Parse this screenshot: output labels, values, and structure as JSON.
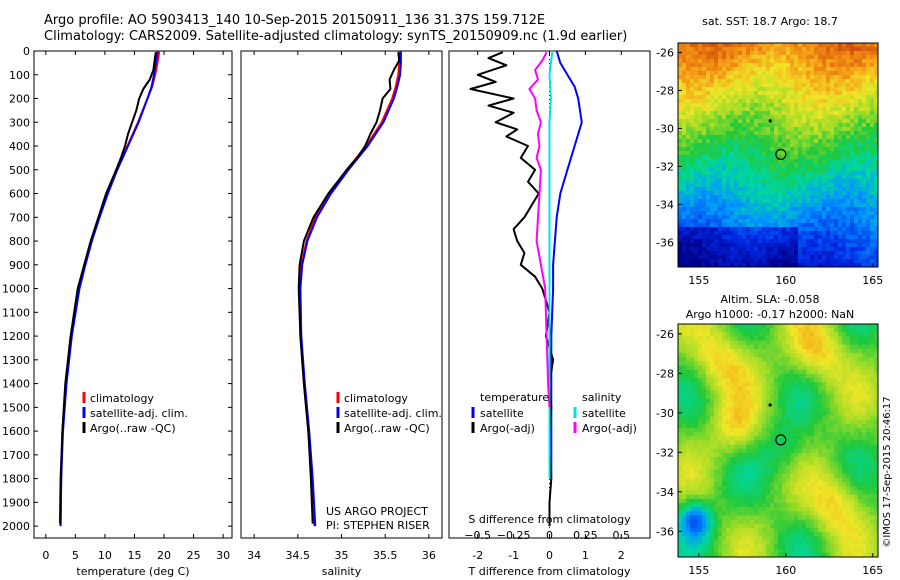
{
  "header": {
    "line1": "Argo profile: AO 5903413_140 10-Sep-2015 20150911_136 31.37S 159.712E",
    "line2": "Climatology: CARS2009. Satellite-adjusted climatology: synTS_20150909.nc (1.9d earlier)"
  },
  "colors": {
    "climatology": "#ff0000",
    "satellite": "#0000ff",
    "argo": "#000000",
    "t_satellite": "#0000ff",
    "s_satellite": "#00e5e5",
    "s_argo": "#ff00ff"
  },
  "chart_data": [
    {
      "type": "line",
      "name": "temperature",
      "xlabel": "temperature (deg C)",
      "xlim": [
        -2,
        31.5
      ],
      "ylim": [
        2050,
        0
      ],
      "xticks": [
        0,
        5,
        10,
        15,
        20,
        25,
        30
      ],
      "yticks": [
        0,
        100,
        200,
        300,
        400,
        500,
        600,
        700,
        800,
        900,
        1000,
        1100,
        1200,
        1300,
        1400,
        1500,
        1600,
        1700,
        1800,
        1900,
        2000
      ],
      "legend": [
        "climatology",
        "satellite-adj. clim.",
        "Argo(..raw -QC)"
      ],
      "series": [
        {
          "name": "climatology",
          "depth": [
            0,
            50,
            100,
            150,
            200,
            300,
            400,
            500,
            600,
            700,
            800,
            900,
            1000,
            1200,
            1400,
            1600,
            1800,
            2000
          ],
          "values": [
            19.2,
            18.9,
            18.5,
            18.0,
            17.2,
            15.6,
            13.8,
            12.0,
            10.4,
            9.0,
            7.7,
            6.6,
            5.6,
            4.3,
            3.4,
            2.8,
            2.6,
            2.5
          ]
        },
        {
          "name": "satellite-adj. clim.",
          "depth": [
            0,
            50,
            100,
            150,
            200,
            300,
            400,
            500,
            600,
            700,
            800,
            900,
            1000,
            1200,
            1400,
            1600,
            1800,
            2000
          ],
          "values": [
            18.9,
            18.6,
            18.3,
            17.9,
            17.2,
            15.7,
            13.9,
            12.1,
            10.5,
            9.1,
            7.8,
            6.7,
            5.7,
            4.4,
            3.5,
            2.9,
            2.6,
            2.5
          ]
        },
        {
          "name": "Argo(..raw -QC)",
          "depth": [
            5,
            40,
            80,
            120,
            160,
            200,
            250,
            300,
            350,
            400,
            450,
            500,
            600,
            700,
            800,
            900,
            1000,
            1200,
            1400,
            1600,
            1800,
            1990
          ],
          "values": [
            18.6,
            18.4,
            18.2,
            17.6,
            16.5,
            15.8,
            15.3,
            14.6,
            13.9,
            13.4,
            12.7,
            11.9,
            10.2,
            8.9,
            7.6,
            6.5,
            5.4,
            4.2,
            3.3,
            2.8,
            2.5,
            2.4
          ]
        }
      ]
    },
    {
      "type": "line",
      "name": "salinity",
      "xlabel": "salinity",
      "xlim": [
        33.85,
        36.15
      ],
      "ylim": [
        2050,
        0
      ],
      "xticks": [
        34,
        34.5,
        35,
        35.5,
        36
      ],
      "xticklabels": [
        "34",
        "34.5",
        "35",
        "35.5",
        "36"
      ],
      "legend": [
        "climatology",
        "satellite-adj. clim.",
        "Argo(..raw -QC)"
      ],
      "annotation": [
        "US ARGO PROJECT",
        "PI: STEPHEN RISER"
      ],
      "series": [
        {
          "name": "climatology",
          "depth": [
            0,
            50,
            100,
            150,
            200,
            300,
            400,
            500,
            600,
            700,
            800,
            900,
            1000,
            1200,
            1400,
            1600,
            1800,
            2000
          ],
          "values": [
            35.66,
            35.66,
            35.65,
            35.62,
            35.58,
            35.46,
            35.28,
            35.06,
            34.86,
            34.7,
            34.6,
            34.54,
            34.52,
            34.53,
            34.57,
            34.62,
            34.66,
            34.69
          ]
        },
        {
          "name": "satellite-adj. clim.",
          "depth": [
            0,
            50,
            100,
            150,
            200,
            300,
            400,
            500,
            600,
            700,
            800,
            900,
            1000,
            1200,
            1400,
            1600,
            1800,
            2000
          ],
          "values": [
            35.68,
            35.68,
            35.67,
            35.64,
            35.6,
            35.48,
            35.3,
            35.08,
            34.88,
            34.72,
            34.61,
            34.55,
            34.53,
            34.54,
            34.58,
            34.63,
            34.67,
            34.7
          ]
        },
        {
          "name": "Argo(..raw -QC)",
          "depth": [
            5,
            40,
            80,
            120,
            160,
            200,
            250,
            300,
            350,
            400,
            450,
            500,
            600,
            700,
            800,
            900,
            1000,
            1200,
            1400,
            1600,
            1800,
            1990
          ],
          "values": [
            35.65,
            35.66,
            35.6,
            35.55,
            35.56,
            35.47,
            35.44,
            35.4,
            35.33,
            35.27,
            35.18,
            35.06,
            34.85,
            34.68,
            34.57,
            34.52,
            34.51,
            34.53,
            34.57,
            34.62,
            34.65,
            34.67
          ]
        }
      ]
    },
    {
      "type": "line",
      "name": "difference from climatology",
      "xlabel": "T difference from climatology",
      "xlabel2": "S difference from climatology",
      "xlim": [
        -2.8,
        2.8
      ],
      "ylim": [
        2050,
        0
      ],
      "xticks": [
        -2,
        -1,
        0,
        1,
        2
      ],
      "sticks": [
        -0.5,
        -0.25,
        0,
        0.25,
        0.5
      ],
      "sticklabels": [
        "−0.5",
        "−0.25",
        "0",
        "0.25",
        "0.5"
      ],
      "legend_temperature": {
        "title": "temperature",
        "items": [
          "satellite",
          "Argo(-adj)"
        ]
      },
      "legend_salinity": {
        "title": "salinity",
        "items": [
          "satellite",
          "Argo(-adj)"
        ]
      },
      "series": [
        {
          "name": "T satellite",
          "depth": [
            0,
            50,
            100,
            150,
            200,
            300,
            400,
            500,
            600,
            700,
            800,
            900,
            1000,
            1200,
            1500,
            1800
          ],
          "values": [
            0.2,
            0.3,
            0.5,
            0.7,
            0.8,
            0.9,
            0.7,
            0.5,
            0.3,
            0.2,
            0.15,
            0.1,
            0.1,
            0.05,
            0.05,
            0.05
          ]
        },
        {
          "name": "T Argo(-adj)",
          "depth": [
            5,
            30,
            60,
            100,
            130,
            160,
            200,
            230,
            260,
            300,
            330,
            360,
            400,
            450,
            500,
            550,
            600,
            650,
            700,
            750,
            800,
            850,
            900,
            950,
            1000,
            1100,
            1200,
            1300,
            1400,
            1500,
            1600,
            1700,
            1800,
            1900,
            2000
          ],
          "values": [
            -1.3,
            -1.7,
            -1.2,
            -2.0,
            -1.5,
            -2.2,
            -1.0,
            -1.7,
            -1.0,
            -1.5,
            -0.9,
            -1.2,
            -0.6,
            -0.8,
            -0.4,
            -0.6,
            -0.3,
            -0.5,
            -0.7,
            -1.0,
            -0.9,
            -0.7,
            -0.8,
            -0.4,
            -0.2,
            0.0,
            -0.1,
            0.1,
            0.0,
            0.05,
            0.0,
            0.0,
            0.05,
            0.0,
            0.0
          ]
        },
        {
          "name": "S satellite",
          "depth": [
            0,
            50,
            100,
            200,
            300,
            400,
            500,
            600,
            700,
            800,
            1000,
            1200,
            1400,
            1600,
            1800
          ],
          "values": [
            0.02,
            0.01,
            0.0,
            0.01,
            0.0,
            0.0,
            0.0,
            0.0,
            0.0,
            0.0,
            0.0,
            0.0,
            0.0,
            0.0,
            0.0
          ]
        },
        {
          "name": "S Argo(-adj)",
          "depth": [
            5,
            40,
            80,
            120,
            160,
            200,
            250,
            300,
            350,
            400,
            450,
            500,
            600,
            700,
            800,
            900,
            1000,
            1200,
            1400,
            1500
          ],
          "values": [
            -0.02,
            -0.05,
            -0.1,
            -0.08,
            -0.14,
            -0.1,
            -0.09,
            -0.06,
            -0.08,
            -0.07,
            -0.09,
            -0.06,
            -0.07,
            -0.08,
            -0.09,
            -0.06,
            -0.03,
            -0.02,
            -0.01,
            0.0
          ]
        }
      ]
    },
    {
      "type": "heatmap",
      "name": "sat SST map",
      "title": "sat. SST: 18.7  Argo: 18.7",
      "xticks": [
        155,
        160,
        165
      ],
      "yticks": [
        -26,
        -28,
        -30,
        -32,
        -34,
        -36
      ],
      "xlim": [
        153.8,
        165.3
      ],
      "ylim": [
        -37.3,
        -25.5
      ],
      "argo_position": [
        159.712,
        -31.37
      ],
      "prev_position": [
        159.1,
        -29.6
      ]
    },
    {
      "type": "heatmap",
      "name": "Altim SLA map",
      "title1": "Altim. SLA: -0.058",
      "title2": "Argo h1000: -0.17 h2000: NaN",
      "xticks": [
        155,
        160,
        165
      ],
      "yticks": [
        -26,
        -28,
        -30,
        -32,
        -34,
        -36
      ],
      "xlim": [
        153.8,
        165.3
      ],
      "ylim": [
        -37.3,
        -25.5
      ],
      "argo_position": [
        159.712,
        -31.37
      ],
      "prev_position": [
        159.1,
        -29.6
      ]
    }
  ],
  "watermark": "©IMOS 17-Sep-2015 20:46:17"
}
